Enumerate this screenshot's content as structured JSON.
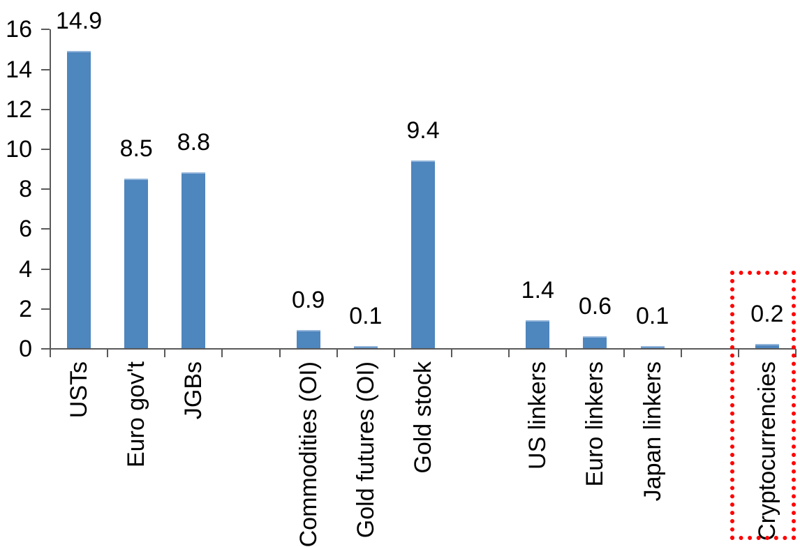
{
  "chart_data": {
    "type": "bar",
    "title": "",
    "xlabel": "",
    "ylabel": "",
    "categories": [
      "USTs",
      "Euro gov't",
      "JGBs",
      "Commodities (OI)",
      "Gold futures (OI)",
      "Gold stock",
      "US linkers",
      "Euro linkers",
      "Japan linkers",
      "Cryptocurrencies"
    ],
    "values": [
      14.9,
      8.5,
      8.8,
      0.9,
      0.1,
      9.4,
      1.4,
      0.6,
      0.1,
      0.2
    ],
    "value_labels": [
      "14.9",
      "8.5",
      "8.8",
      "0.9",
      "0.1",
      "9.4",
      "1.4",
      "0.6",
      "0.1",
      "0.2"
    ],
    "ylim": [
      0,
      16
    ],
    "yticks": [
      0,
      2,
      4,
      6,
      8,
      10,
      12,
      14,
      16
    ],
    "grid": false,
    "legend": false,
    "data_labels_position": "outside-end",
    "category_label_rotation_deg": 90,
    "bar_color": "#4e86be",
    "bar_top_edge_color": "#93b5da",
    "axis_color": "#595959",
    "text_color": "#000000",
    "category_slots": [
      0,
      1,
      2,
      4,
      5,
      6,
      8,
      9,
      10,
      12
    ],
    "total_slots": 13,
    "highlight": {
      "category": "Cryptocurrencies",
      "shape": "red-dotted-rectangle",
      "color": "#ff0000"
    }
  }
}
